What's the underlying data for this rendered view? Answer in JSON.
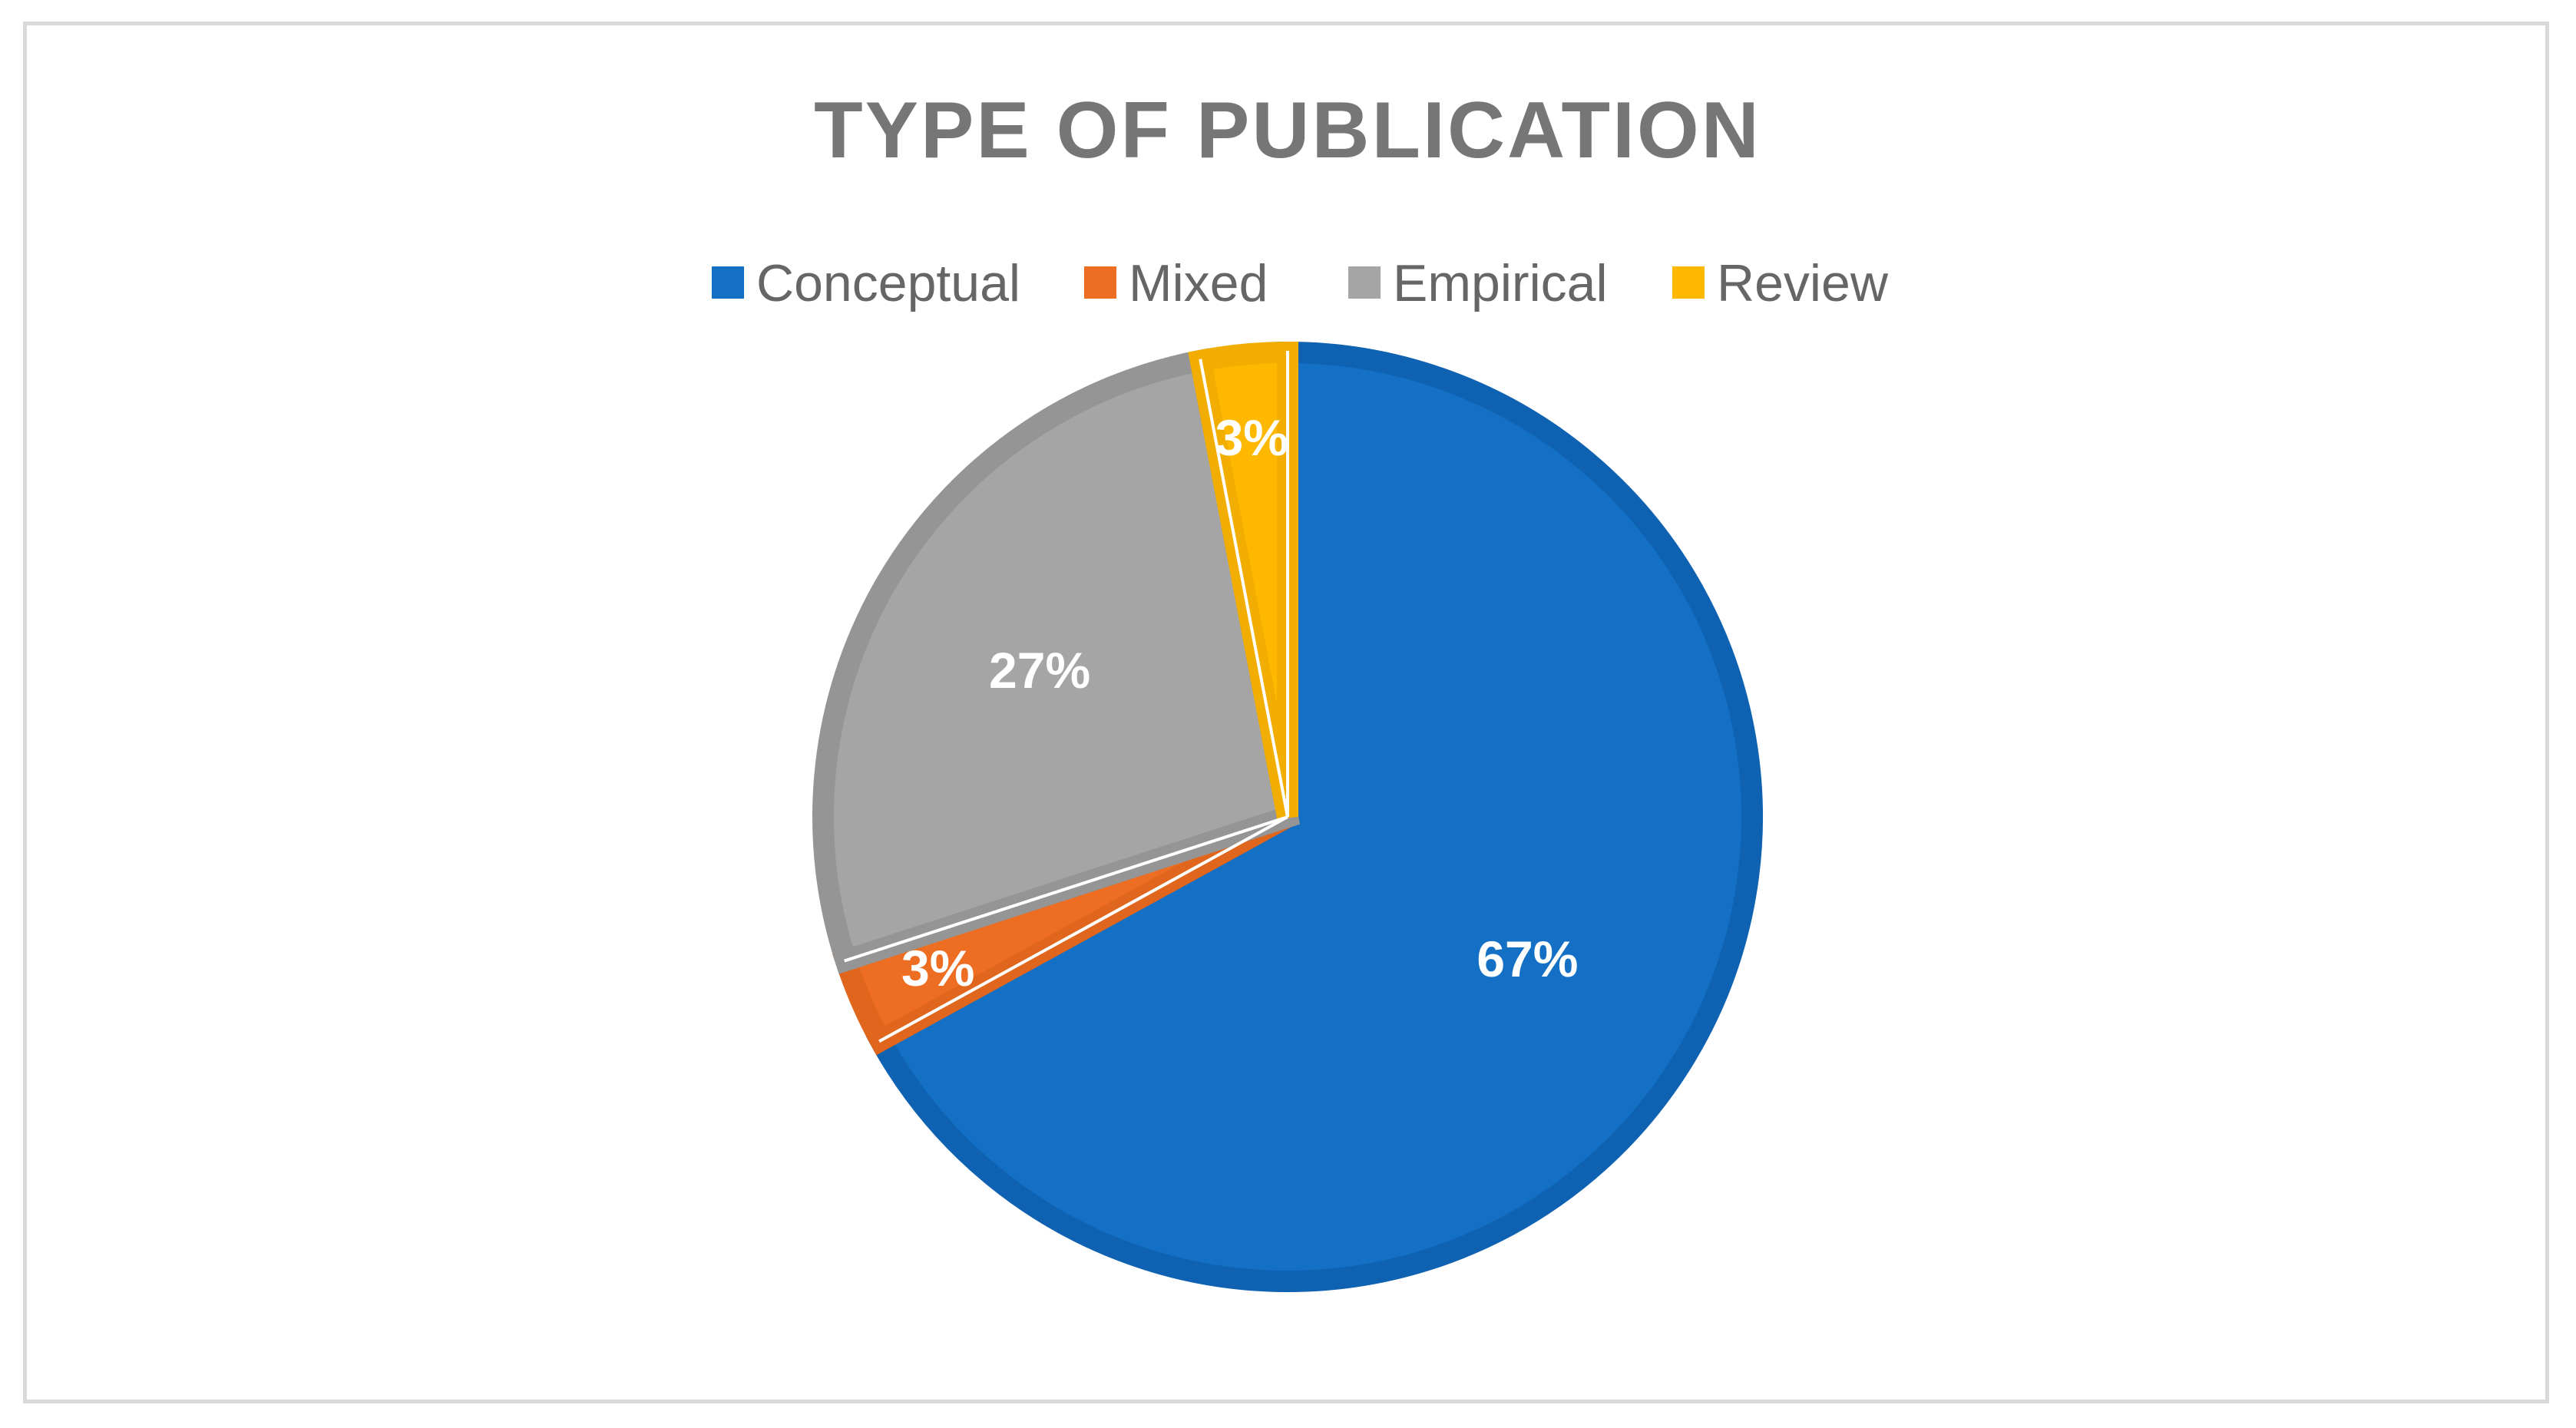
{
  "chart_data": {
    "type": "pie",
    "title": "TYPE OF PUBLICATION",
    "categories": [
      "Conceptual",
      "Mixed",
      "Empirical",
      "Review"
    ],
    "values": [
      67,
      3,
      27,
      3
    ],
    "labels": [
      "67%",
      "3%",
      "27%",
      "3%"
    ],
    "legend_position": "top",
    "start_angle_deg": 0,
    "direction": "clockwise",
    "colors": [
      "#1370C4",
      "#ED6E22",
      "#A5A5A5",
      "#FEB800"
    ],
    "edge_colors": [
      "#0F62B2",
      "#E0661E",
      "#959595",
      "#F2AE00"
    ],
    "label_color": "#ffffff",
    "title_color": "#767676",
    "legend_text_color": "#666666"
  }
}
